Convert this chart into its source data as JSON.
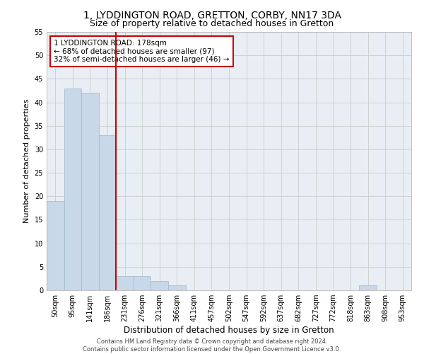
{
  "title_line1": "1, LYDDINGTON ROAD, GRETTON, CORBY, NN17 3DA",
  "title_line2": "Size of property relative to detached houses in Gretton",
  "xlabel": "Distribution of detached houses by size in Gretton",
  "ylabel": "Number of detached properties",
  "bar_labels": [
    "50sqm",
    "95sqm",
    "141sqm",
    "186sqm",
    "231sqm",
    "276sqm",
    "321sqm",
    "366sqm",
    "411sqm",
    "457sqm",
    "502sqm",
    "547sqm",
    "592sqm",
    "637sqm",
    "682sqm",
    "727sqm",
    "772sqm",
    "818sqm",
    "863sqm",
    "908sqm",
    "953sqm"
  ],
  "bar_values": [
    19,
    43,
    42,
    33,
    3,
    3,
    2,
    1,
    0,
    0,
    0,
    0,
    0,
    0,
    0,
    0,
    0,
    0,
    1,
    0,
    0
  ],
  "bar_color": "#c8d8e8",
  "bar_edge_color": "#a0b8cc",
  "vline_x": 3.5,
  "vline_color": "#cc0000",
  "annotation_text": "1 LYDDINGTON ROAD: 178sqm\n← 68% of detached houses are smaller (97)\n32% of semi-detached houses are larger (46) →",
  "annotation_box_color": "#ffffff",
  "annotation_box_edge": "#cc0000",
  "ylim": [
    0,
    55
  ],
  "yticks": [
    0,
    5,
    10,
    15,
    20,
    25,
    30,
    35,
    40,
    45,
    50,
    55
  ],
  "grid_color": "#cccccc",
  "bg_color": "#e8eef4",
  "footer_text": "Contains HM Land Registry data © Crown copyright and database right 2024.\nContains public sector information licensed under the Open Government Licence v3.0.",
  "title_fontsize": 10,
  "subtitle_fontsize": 9,
  "tick_fontsize": 7,
  "ylabel_fontsize": 8,
  "xlabel_fontsize": 8.5,
  "annotation_fontsize": 7.5,
  "footer_fontsize": 6
}
